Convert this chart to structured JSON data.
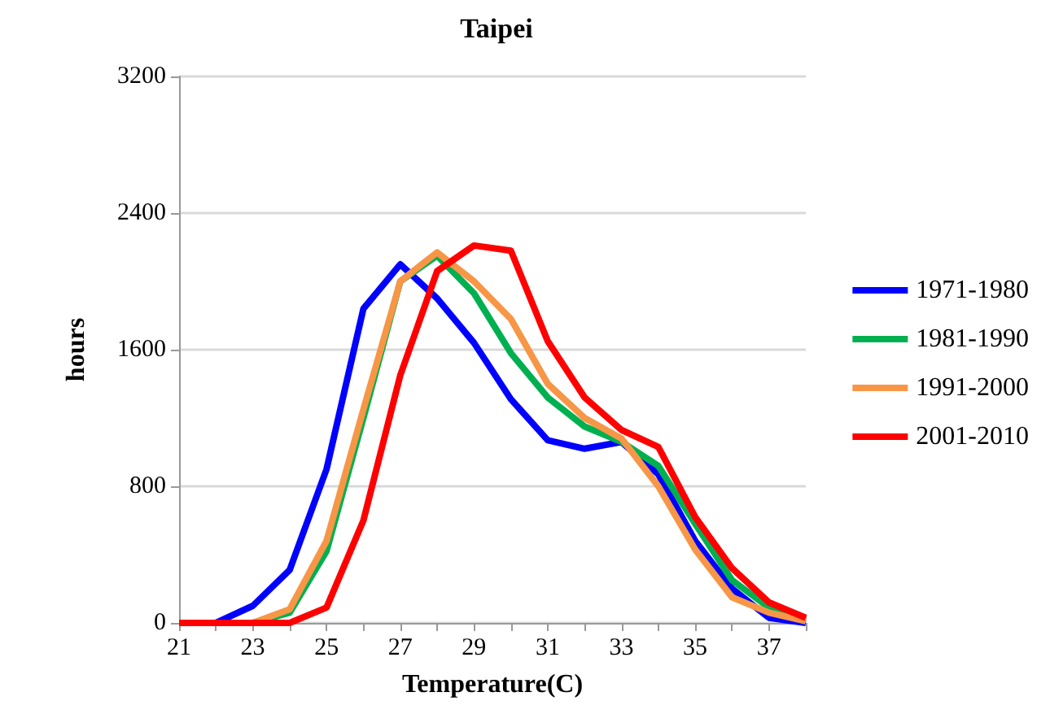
{
  "chart_data": {
    "type": "line",
    "title": "Taipei",
    "xlabel": "Temperature(C)",
    "ylabel": "hours",
    "x": [
      21,
      22,
      23,
      24,
      25,
      26,
      27,
      28,
      29,
      30,
      31,
      32,
      33,
      34,
      35,
      36,
      37,
      38
    ],
    "series": [
      {
        "name": "1971-1980",
        "color": "#0000ff",
        "values": [
          0,
          0,
          100,
          310,
          900,
          1840,
          2100,
          1900,
          1640,
          1310,
          1070,
          1020,
          1060,
          870,
          480,
          200,
          30,
          0
        ]
      },
      {
        "name": "1981-1990",
        "color": "#00b050",
        "values": [
          0,
          0,
          0,
          60,
          420,
          1200,
          2000,
          2150,
          1930,
          1580,
          1320,
          1150,
          1060,
          920,
          580,
          250,
          90,
          20
        ]
      },
      {
        "name": "1991-2000",
        "color": "#f79646",
        "values": [
          0,
          0,
          0,
          80,
          480,
          1250,
          2000,
          2170,
          2000,
          1780,
          1400,
          1200,
          1080,
          800,
          430,
          150,
          60,
          10
        ]
      },
      {
        "name": "2001-2010",
        "color": "#ff0000",
        "values": [
          0,
          0,
          0,
          0,
          90,
          600,
          1450,
          2060,
          2210,
          2180,
          1650,
          1320,
          1130,
          1030,
          620,
          320,
          120,
          30
        ]
      }
    ],
    "xlim": [
      21,
      38
    ],
    "xticks": [
      21,
      {
        "value": 22,
        "label": null
      },
      23,
      {
        "value": 24,
        "label": null
      },
      25,
      {
        "value": 26,
        "label": null
      },
      27,
      {
        "value": 28,
        "label": null
      },
      29,
      {
        "value": 30,
        "label": null
      },
      31,
      {
        "value": 32,
        "label": null
      },
      33,
      {
        "value": 34,
        "label": null
      },
      35,
      {
        "value": 36,
        "label": null
      },
      37,
      {
        "value": 38,
        "label": null
      }
    ],
    "ylim": [
      0,
      3200
    ],
    "yticks": [
      0,
      800,
      1600,
      2400,
      3200
    ],
    "grid": "y",
    "legend": "right",
    "marker": "none",
    "line_style": "solid"
  }
}
